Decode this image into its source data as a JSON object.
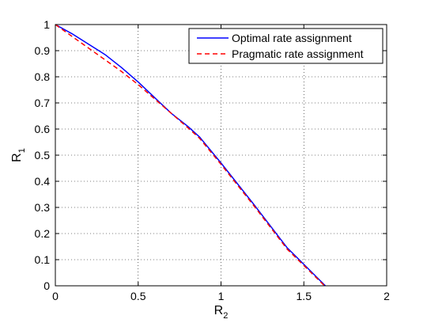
{
  "chart_data": {
    "type": "line",
    "title": "",
    "xlabel": {
      "main": "R",
      "sub": "2"
    },
    "ylabel": {
      "main": "R",
      "sub": "1"
    },
    "xlim": [
      0,
      2
    ],
    "ylim": [
      0,
      1
    ],
    "xticks": [
      0,
      0.5,
      1,
      1.5,
      2
    ],
    "xtick_labels": [
      "0",
      "0.5",
      "1",
      "1.5",
      "2"
    ],
    "yticks": [
      0,
      0.1,
      0.2,
      0.3,
      0.4,
      0.5,
      0.6,
      0.7,
      0.8,
      0.9,
      1
    ],
    "ytick_labels": [
      "0",
      "0.1",
      "0.2",
      "0.3",
      "0.4",
      "0.5",
      "0.6",
      "0.7",
      "0.8",
      "0.9",
      "1"
    ],
    "grid": true,
    "legend_position": "top-right",
    "series": [
      {
        "name": "Optimal rate assignment",
        "color": "#0000ff",
        "dash": "solid",
        "x": [
          0,
          0.1,
          0.2,
          0.3,
          0.4,
          0.5,
          0.6,
          0.7,
          0.8,
          0.87,
          1.0,
          1.2,
          1.4,
          1.63
        ],
        "y": [
          1,
          0.965,
          0.925,
          0.885,
          0.835,
          0.78,
          0.72,
          0.66,
          0.61,
          0.57,
          0.47,
          0.31,
          0.145,
          0
        ]
      },
      {
        "name": "Pragmatic rate assignment",
        "color": "#ff0000",
        "dash": "dashed",
        "x": [
          0,
          0.1,
          0.2,
          0.3,
          0.4,
          0.5,
          0.6,
          0.7,
          0.8,
          0.87,
          1.0,
          1.2,
          1.4,
          1.625
        ],
        "y": [
          1,
          0.955,
          0.91,
          0.865,
          0.82,
          0.77,
          0.715,
          0.66,
          0.605,
          0.565,
          0.465,
          0.305,
          0.14,
          0
        ]
      }
    ]
  }
}
